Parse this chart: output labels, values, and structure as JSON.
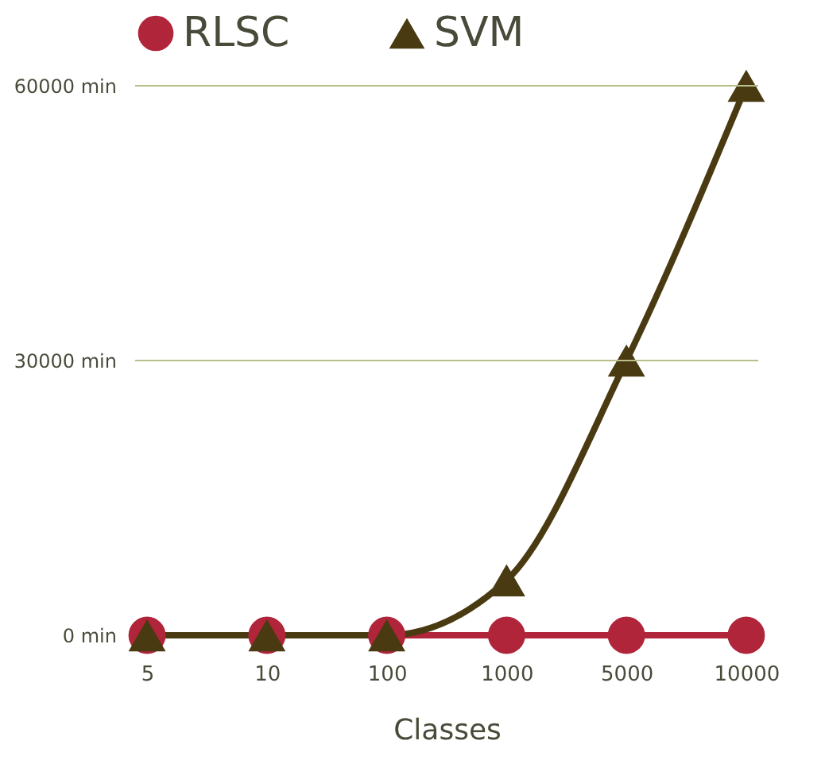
{
  "chart_data": {
    "type": "line",
    "xlabel": "Classes",
    "categories": [
      "5",
      "10",
      "100",
      "1000",
      "5000",
      "10000"
    ],
    "series": [
      {
        "name": "RLSC",
        "color": "#b0253a",
        "marker": "circle",
        "values": [
          0,
          0,
          0,
          0,
          0,
          0
        ]
      },
      {
        "name": "SVM",
        "color": "#4a3a12",
        "marker": "triangle",
        "values": [
          0,
          0,
          0,
          6000,
          30000,
          60000
        ]
      }
    ],
    "ylim": [
      0,
      60000
    ],
    "yticks": [
      {
        "value": 0,
        "label": "0 min"
      },
      {
        "value": 30000,
        "label": "30000 min"
      },
      {
        "value": 60000,
        "label": "60000 min"
      }
    ],
    "ref_lines": [
      {
        "axis": "y",
        "value": 30000,
        "color": "#b8bf8a"
      },
      {
        "axis": "y",
        "value": 60000,
        "color": "#b8bf8a"
      }
    ],
    "legend": "top"
  }
}
